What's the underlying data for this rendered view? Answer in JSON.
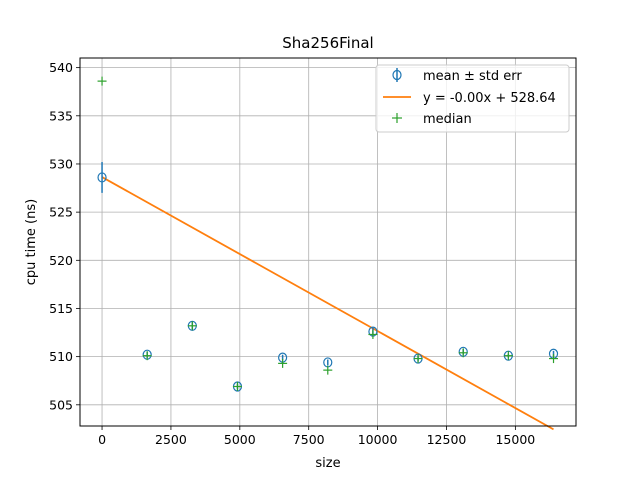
{
  "chart_data": {
    "type": "scatter",
    "title": "Sha256Final",
    "xlabel": "size",
    "ylabel": "cpu time (ns)",
    "xlim": [
      -800,
      17200
    ],
    "ylim": [
      502.8,
      541
    ],
    "xticks": [
      0,
      2500,
      5000,
      7500,
      10000,
      12500,
      15000
    ],
    "xtick_labels": [
      "0",
      "2500",
      "5000",
      "7500",
      "10000",
      "12500",
      "15000"
    ],
    "yticks": [
      505,
      510,
      515,
      520,
      525,
      530,
      535,
      540
    ],
    "ytick_labels": [
      "505",
      "510",
      "515",
      "520",
      "525",
      "530",
      "535",
      "540"
    ],
    "grid": true,
    "legend_position": "top-right",
    "series": [
      {
        "name": "mean ± std err",
        "kind": "errorbar",
        "color": "#1f77b4",
        "x": [
          0,
          1638,
          3276,
          4915,
          6553,
          8192,
          9830,
          11468,
          13107,
          14745,
          16384
        ],
        "y": [
          528.6,
          510.2,
          513.2,
          506.9,
          509.9,
          509.4,
          512.6,
          509.8,
          510.5,
          510.1,
          510.3
        ],
        "yerr": [
          1.6,
          0.3,
          0.5,
          0.3,
          0.3,
          0.3,
          0.4,
          0.3,
          0.3,
          0.2,
          0.3
        ]
      },
      {
        "name": "y = -0.00x + 528.64",
        "kind": "line",
        "color": "#ff7f0e",
        "x": [
          0,
          16384
        ],
        "y": [
          528.64,
          502.45
        ]
      },
      {
        "name": "median",
        "kind": "scatter",
        "marker": "+",
        "color": "#2ca02c",
        "x": [
          0,
          1638,
          3276,
          4915,
          6553,
          8192,
          9830,
          11468,
          13107,
          14745,
          16384
        ],
        "y": [
          538.6,
          510.1,
          513.2,
          506.9,
          509.3,
          508.6,
          512.3,
          509.8,
          510.4,
          510.1,
          509.8
        ]
      }
    ]
  }
}
